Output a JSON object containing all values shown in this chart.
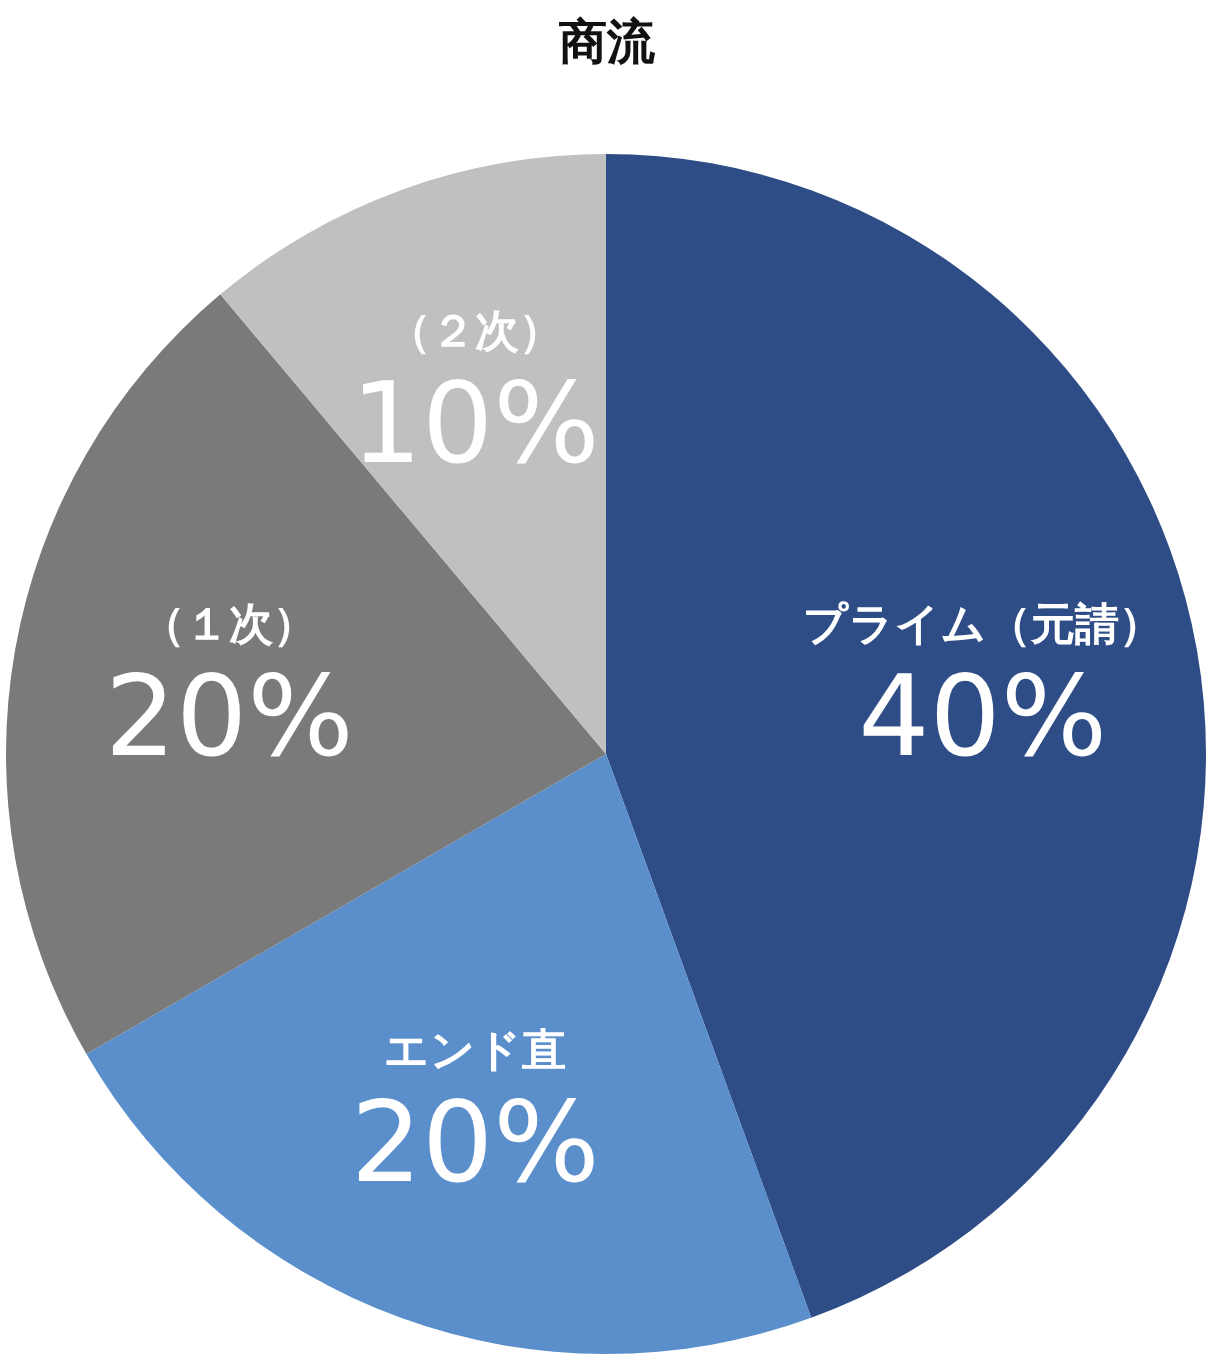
{
  "chart_data": {
    "type": "pie",
    "title": "商流",
    "categories": [
      "プライム（元請）",
      "エンド直",
      "（１次）",
      "（２次）"
    ],
    "values": [
      40,
      20,
      20,
      10
    ],
    "value_labels": [
      "40%",
      "20%",
      "20%",
      "10%"
    ],
    "colors": [
      "#2e4d87",
      "#5a8fcc",
      "#7a7a7a",
      "#c0c0c0"
    ],
    "legend": false
  }
}
